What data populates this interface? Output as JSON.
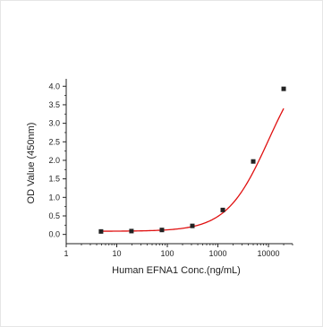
{
  "chart_data": {
    "type": "scatter",
    "title": "",
    "xlabel": "Human EFNA1 Conc.(ng/mL)",
    "ylabel": "OD Value (450nm)",
    "x_scale": "log",
    "xlim": [
      1,
      30000
    ],
    "ylim": [
      -0.25,
      4.2
    ],
    "x_ticks": [
      1,
      10,
      100,
      1000,
      10000
    ],
    "x_tick_labels": [
      "1",
      "10",
      "100",
      "1000",
      "10000"
    ],
    "y_ticks": [
      0.0,
      0.5,
      1.0,
      1.5,
      2.0,
      2.5,
      3.0,
      3.5,
      4.0
    ],
    "y_tick_labels": [
      "0.0",
      "0.5",
      "1.0",
      "1.5",
      "2.0",
      "2.5",
      "3.0",
      "3.5",
      "4.0"
    ],
    "grid": false,
    "series": [
      {
        "x": [
          4.88,
          19.5,
          78.1,
          312.5,
          1250,
          5000,
          20000
        ],
        "y": [
          0.08,
          0.09,
          0.12,
          0.23,
          0.66,
          1.97,
          3.93
        ],
        "marker_color": "#222222",
        "fit_color": "#e01010"
      }
    ],
    "fit": {
      "type": "4PL",
      "A": 0.085,
      "D": 5.0,
      "C": 10000,
      "B": 1.05
    }
  }
}
